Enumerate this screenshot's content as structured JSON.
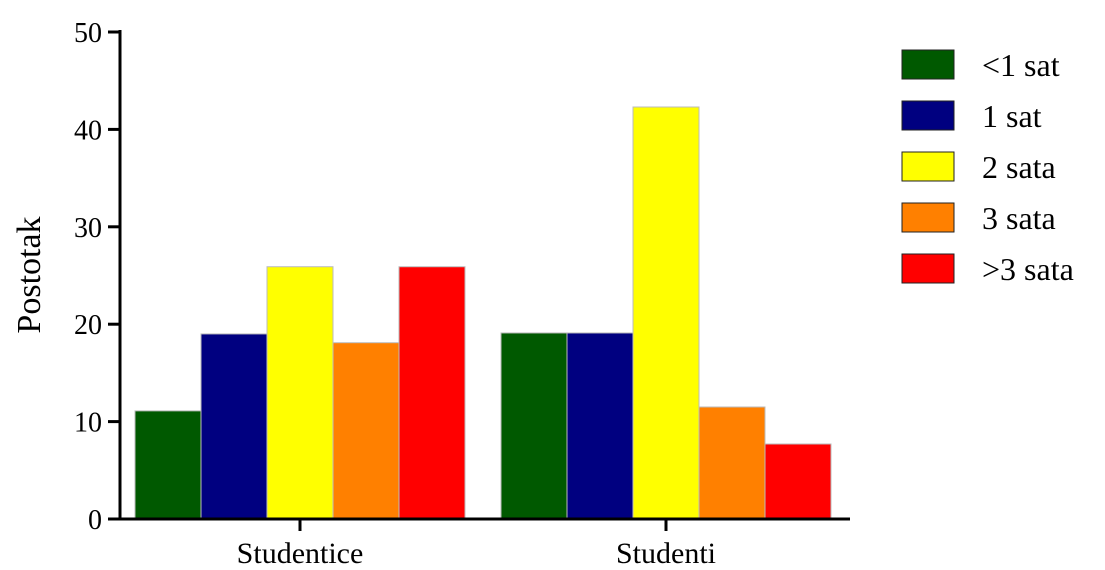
{
  "chart_data": {
    "type": "bar",
    "title": "",
    "xlabel": "",
    "ylabel": "Postotak",
    "ylim": [
      0,
      50
    ],
    "yticks": [
      0,
      10,
      20,
      30,
      40,
      50
    ],
    "categories": [
      "Studentice",
      "Studenti"
    ],
    "series": [
      {
        "name": "<1 sat",
        "color": "#005900",
        "values": [
          11.1,
          19.1
        ]
      },
      {
        "name": "1 sat",
        "color": "#000080",
        "values": [
          19.0,
          19.1
        ]
      },
      {
        "name": "2 sata",
        "color": "#ffff00",
        "values": [
          25.9,
          42.3
        ]
      },
      {
        "name": "3 sata",
        "color": "#ff8000",
        "values": [
          18.1,
          11.5
        ]
      },
      {
        "name": ">3 sata",
        "color": "#ff0000",
        "values": [
          25.9,
          7.7
        ]
      }
    ],
    "grid": false,
    "legend_position": "right"
  }
}
